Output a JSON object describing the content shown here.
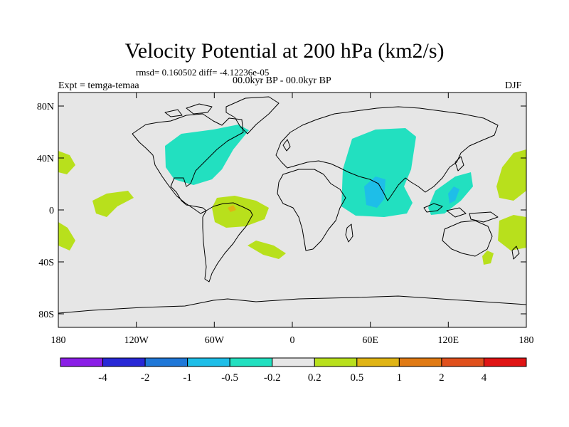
{
  "title": "Velocity Potential at 200 hPa (km2/s)",
  "stats": "rmsd= 0.160502 diff= -4.12236e-05",
  "experiment": "Expt = temga-temaa",
  "period": "00.0kyr BP - 00.0kyr BP",
  "season": "DJF",
  "y_axis_labels": [
    "80N",
    "40N",
    "0",
    "40S",
    "80S"
  ],
  "x_axis_labels": [
    "180",
    "120W",
    "60W",
    "0",
    "60E",
    "120E",
    "180"
  ],
  "colorbar": {
    "colors": [
      "#8a1ee6",
      "#2828d6",
      "#1f78d8",
      "#1ebee8",
      "#22e0c0",
      "#e6e6e6",
      "#b8e01c",
      "#e0b414",
      "#e07a14",
      "#e0501c",
      "#e01414"
    ],
    "labels": [
      "-4",
      "-2",
      "-1",
      "-0.5",
      "-0.2",
      "0.2",
      "0.5",
      "1",
      "2",
      "4"
    ]
  },
  "colors": {
    "background": "#e6e6e6",
    "negative_fill": "#22e0c0",
    "positive_fill": "#b8e01c",
    "core_negative": "#1ebee8",
    "core_positive": "#e0b414"
  }
}
